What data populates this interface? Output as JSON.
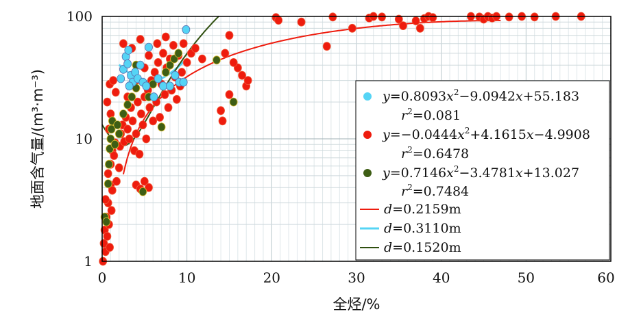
{
  "chart_data": {
    "type": "scatter",
    "xlabel": "全烃/%",
    "ylabel": "地面含气量/(m³·m⁻³)",
    "xlim": [
      0,
      60
    ],
    "ylim": [
      1,
      100
    ],
    "yscale": "log",
    "x_ticks": [
      "0",
      "10",
      "20",
      "30",
      "40",
      "50",
      "60"
    ],
    "y_ticks": [
      "1",
      "10",
      "100"
    ],
    "grid": true,
    "legend_position": "right",
    "series": [
      {
        "color": "#55d4f5",
        "marker": "circle",
        "fit_equation": "y=0.8093x²−9.0942x+55.183",
        "r2": "r²=0.081",
        "curve": {
          "a": 0.8093,
          "b": -9.0942,
          "c": 55.183,
          "x_range": [
            2,
            10
          ],
          "color": "#55d4f5",
          "label": "d=0.3110m"
        },
        "points": [
          [
            2.2,
            31
          ],
          [
            2.5,
            37
          ],
          [
            2.8,
            47
          ],
          [
            3.0,
            41
          ],
          [
            3.1,
            53
          ],
          [
            3.4,
            33
          ],
          [
            3.6,
            29
          ],
          [
            3.2,
            27
          ],
          [
            3.9,
            35
          ],
          [
            4.2,
            31
          ],
          [
            4.5,
            40
          ],
          [
            4.8,
            29
          ],
          [
            5.2,
            27
          ],
          [
            5.5,
            56
          ],
          [
            6.1,
            22
          ],
          [
            6.6,
            31
          ],
          [
            7.2,
            27
          ],
          [
            8.0,
            27
          ],
          [
            8.6,
            33
          ],
          [
            9.1,
            29
          ],
          [
            9.6,
            29
          ],
          [
            9.9,
            78
          ]
        ]
      },
      {
        "color": "#ee1c0e",
        "marker": "circle",
        "fit_equation": "y=−0.0444x²+4.1615x−4.9908",
        "r2": "r²=0.6478",
        "curve": {
          "a": -0.0444,
          "b": 4.1615,
          "c": -4.9908,
          "x_range": [
            2.5,
            47
          ],
          "color": "#ee1c0e",
          "label": "d=0.2159m"
        },
        "points": [
          [
            0.1,
            1.0
          ],
          [
            0.2,
            1.4
          ],
          [
            0.3,
            1.8
          ],
          [
            0.4,
            1.2
          ],
          [
            0.5,
            2.3
          ],
          [
            0.6,
            1.6
          ],
          [
            0.7,
            3.0
          ],
          [
            0.8,
            2.0
          ],
          [
            0.9,
            1.3
          ],
          [
            1.0,
            4.2
          ],
          [
            1.1,
            2.6
          ],
          [
            1.2,
            3.8
          ],
          [
            0.4,
            3.2
          ],
          [
            0.7,
            5.2
          ],
          [
            1.0,
            6.2
          ],
          [
            1.2,
            8.0
          ],
          [
            1.4,
            7.3
          ],
          [
            1.5,
            9.3
          ],
          [
            0.8,
            12
          ],
          [
            1.0,
            16
          ],
          [
            0.6,
            20
          ],
          [
            0.9,
            28
          ],
          [
            1.3,
            30
          ],
          [
            1.6,
            24
          ],
          [
            1.7,
            4.5
          ],
          [
            2.0,
            5.8
          ],
          [
            2.1,
            8.7
          ],
          [
            2.2,
            11
          ],
          [
            2.4,
            13
          ],
          [
            2.6,
            9.5
          ],
          [
            2.8,
            15
          ],
          [
            3.0,
            12
          ],
          [
            3.2,
            10
          ],
          [
            3.4,
            18
          ],
          [
            3.6,
            14
          ],
          [
            3.8,
            8.0
          ],
          [
            4.0,
            11
          ],
          [
            4.2,
            20
          ],
          [
            4.4,
            7.5
          ],
          [
            4.6,
            16
          ],
          [
            4.8,
            13
          ],
          [
            5.0,
            22
          ],
          [
            5.2,
            10
          ],
          [
            5.4,
            25
          ],
          [
            5.6,
            18
          ],
          [
            5.8,
            30
          ],
          [
            6.0,
            14
          ],
          [
            6.2,
            35
          ],
          [
            6.4,
            20
          ],
          [
            6.6,
            42
          ],
          [
            6.8,
            15
          ],
          [
            7.0,
            28
          ],
          [
            7.2,
            50
          ],
          [
            7.4,
            23
          ],
          [
            7.6,
            38
          ],
          [
            7.8,
            18
          ],
          [
            8.0,
            45
          ],
          [
            8.2,
            25
          ],
          [
            8.4,
            58
          ],
          [
            8.6,
            32
          ],
          [
            8.8,
            21
          ],
          [
            9.0,
            48
          ],
          [
            9.2,
            27
          ],
          [
            9.4,
            35
          ],
          [
            9.6,
            60
          ],
          [
            10.0,
            42
          ],
          [
            10.5,
            50
          ],
          [
            11.0,
            55
          ],
          [
            11.8,
            45
          ],
          [
            2.5,
            60
          ],
          [
            3.5,
            55
          ],
          [
            4.5,
            65
          ],
          [
            5.5,
            48
          ],
          [
            6.5,
            60
          ],
          [
            7.5,
            68
          ],
          [
            3.0,
            22
          ],
          [
            4.0,
            30
          ],
          [
            5.0,
            38
          ],
          [
            4.0,
            4.2
          ],
          [
            4.5,
            3.9
          ],
          [
            5.0,
            4.5
          ],
          [
            5.5,
            4.0
          ],
          [
            14.0,
            17
          ],
          [
            14.2,
            14
          ],
          [
            15.0,
            23
          ],
          [
            16.0,
            38
          ],
          [
            16.5,
            33
          ],
          [
            17.0,
            27
          ],
          [
            17.2,
            30
          ],
          [
            15.5,
            42
          ],
          [
            14.5,
            50
          ],
          [
            15.0,
            70
          ],
          [
            20.5,
            98
          ],
          [
            20.8,
            93
          ],
          [
            23.5,
            90
          ],
          [
            26.5,
            57
          ],
          [
            27.2,
            99
          ],
          [
            29.5,
            80
          ],
          [
            31.5,
            97
          ],
          [
            32.0,
            100
          ],
          [
            33.0,
            99
          ],
          [
            35.0,
            95
          ],
          [
            35.5,
            84
          ],
          [
            37.0,
            92
          ],
          [
            37.5,
            80
          ],
          [
            38.0,
            96
          ],
          [
            38.5,
            100
          ],
          [
            39.0,
            98
          ],
          [
            43.5,
            100
          ],
          [
            44.5,
            99
          ],
          [
            45.0,
            95
          ],
          [
            45.5,
            100
          ],
          [
            46.0,
            97
          ],
          [
            46.5,
            100
          ],
          [
            48.0,
            99
          ],
          [
            49.5,
            100
          ],
          [
            51.0,
            99
          ],
          [
            53.5,
            100
          ],
          [
            56.5,
            100
          ]
        ]
      },
      {
        "color": "#3e5e15",
        "marker": "circle",
        "fit_equation": "y=0.7146x²−3.4781x+13.027",
        "r2": "r²=0.7484",
        "curve": {
          "a": 0.7146,
          "b": -3.4781,
          "c": 13.027,
          "x_range": [
            0,
            14
          ],
          "color": "#2f4f0f",
          "label": "d=0.1520m"
        },
        "points": [
          [
            0.3,
            2.3
          ],
          [
            0.5,
            2.1
          ],
          [
            0.7,
            4.3
          ],
          [
            0.8,
            6.2
          ],
          [
            0.9,
            8.3
          ],
          [
            1.0,
            10
          ],
          [
            1.1,
            12
          ],
          [
            1.2,
            14
          ],
          [
            1.5,
            9.0
          ],
          [
            1.8,
            13
          ],
          [
            2.0,
            11
          ],
          [
            2.5,
            16
          ],
          [
            3.0,
            19
          ],
          [
            3.5,
            22
          ],
          [
            4.0,
            26
          ],
          [
            4.8,
            3.7
          ],
          [
            5.5,
            22
          ],
          [
            6.0,
            28
          ],
          [
            7.0,
            12.5
          ],
          [
            7.5,
            35
          ],
          [
            8.0,
            40
          ],
          [
            8.5,
            45
          ],
          [
            9.0,
            50
          ],
          [
            13.5,
            44
          ],
          [
            15.5,
            20
          ],
          [
            4.0,
            40
          ]
        ]
      }
    ]
  },
  "legend": {
    "eq_cyan_pre": "y",
    "eq_cyan_mid": "=0.8093",
    "eq_cyan_x1": "x",
    "eq_cyan_pow": "2",
    "eq_cyan_post1": "−9.0942",
    "eq_cyan_x2": "x",
    "eq_cyan_post2": "+55.183",
    "r_cyan_r": "r",
    "r_cyan_pow": "2",
    "r_cyan_val": "=0.081",
    "eq_red_pre": "y",
    "eq_red_mid": "=−0.0444",
    "eq_red_x1": "x",
    "eq_red_pow": "2",
    "eq_red_post1": "+4.1615",
    "eq_red_x2": "x",
    "eq_red_post2": "−4.9908",
    "r_red_r": "r",
    "r_red_pow": "2",
    "r_red_val": "=0.6478",
    "eq_green_pre": "y",
    "eq_green_mid": "=0.7146",
    "eq_green_x1": "x",
    "eq_green_pow": "2",
    "eq_green_post1": "−3.4781",
    "eq_green_x2": "x",
    "eq_green_post2": "+13.027",
    "r_green_r": "r",
    "r_green_pow": "2",
    "r_green_val": "=0.7484",
    "d_red_var": "d",
    "d_red_val": "=0.2159m",
    "d_cyan_var": "d",
    "d_cyan_val": "=0.3110m",
    "d_green_var": "d",
    "d_green_val": "=0.1520m"
  }
}
